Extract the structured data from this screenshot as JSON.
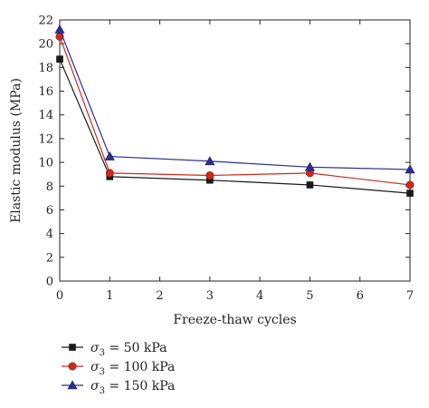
{
  "chart_data": {
    "type": "line",
    "xlabel": "Freeze-thaw cycles",
    "ylabel": "Elastic modulus (MPa)",
    "xlim": [
      0,
      7
    ],
    "ylim": [
      0,
      22
    ],
    "x_ticks": [
      0,
      1,
      2,
      3,
      4,
      5,
      6,
      7
    ],
    "y_ticks": [
      0,
      2,
      4,
      6,
      8,
      10,
      12,
      14,
      16,
      18,
      20,
      22
    ],
    "grid": false,
    "legend_position": "bottom-left, below plot",
    "x": [
      0,
      1,
      3,
      5,
      7
    ],
    "series": [
      {
        "name": "σ3 = 50 kPa",
        "label_symbol": "σ",
        "label_sub": "3",
        "label_rest": " = 50 kPa",
        "color": "#1a1a1a",
        "marker": "square",
        "values": [
          18.7,
          8.8,
          8.5,
          8.1,
          7.4
        ]
      },
      {
        "name": "σ3 = 100 kPa",
        "label_symbol": "σ",
        "label_sub": "3",
        "label_rest": " = 100 kPa",
        "color": "#cc2a1c",
        "marker": "circle",
        "values": [
          20.6,
          9.1,
          8.9,
          9.1,
          8.1
        ]
      },
      {
        "name": "σ3 = 150 kPa",
        "label_symbol": "σ",
        "label_sub": "3",
        "label_rest": " = 150 kPa",
        "color": "#2b2f8f",
        "marker": "triangle",
        "values": [
          21.2,
          10.5,
          10.1,
          9.6,
          9.4
        ]
      }
    ]
  }
}
